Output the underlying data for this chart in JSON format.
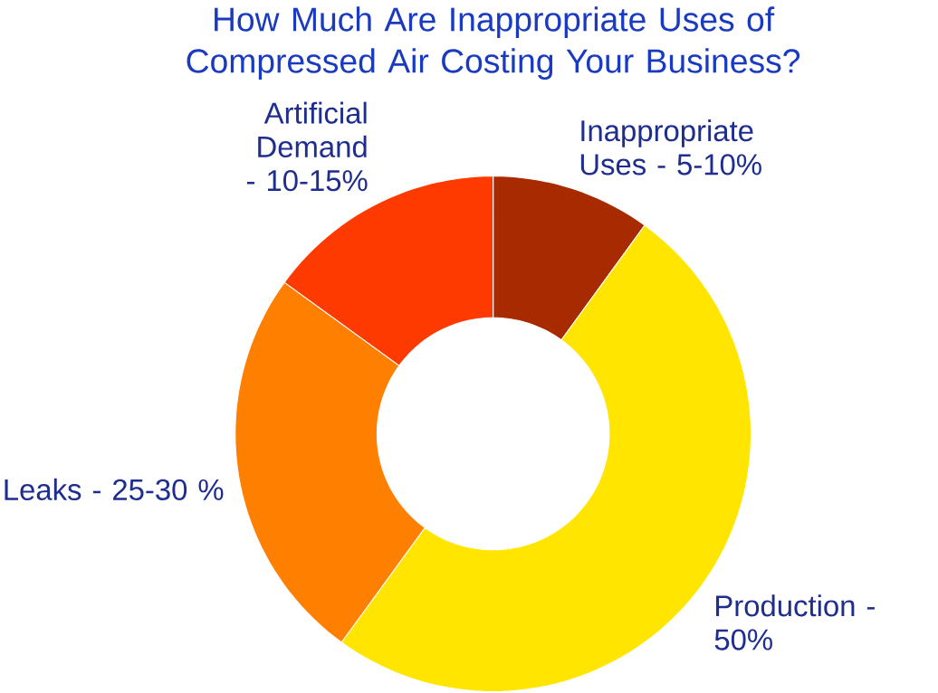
{
  "chart_data": {
    "type": "donut",
    "title": "How Much Are Inappropriate Uses of Compressed Air Costing Your Business?",
    "categories": [
      "Inappropriate Uses - 5-10%",
      "Production - 50%",
      "Leaks - 25-30 %",
      "Artificial Demand - 10-15%"
    ],
    "values": [
      10,
      50,
      25,
      15
    ],
    "colors": [
      "#a82a00",
      "#ffe500",
      "#ff7f00",
      "#ff3a00"
    ]
  }
}
